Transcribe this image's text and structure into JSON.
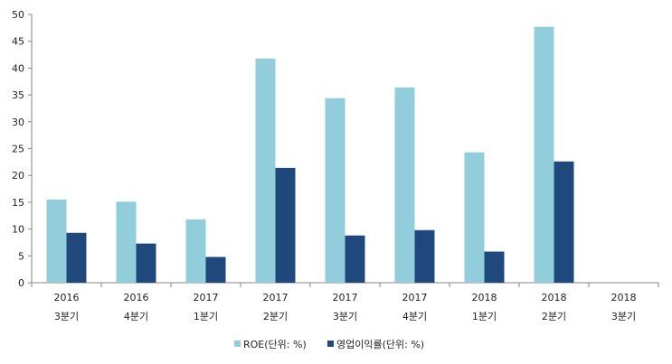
{
  "chart_data": {
    "type": "bar",
    "categories": [
      [
        "2016",
        "3분기"
      ],
      [
        "2016",
        "4분기"
      ],
      [
        "2017",
        "1분기"
      ],
      [
        "2017",
        "2분기"
      ],
      [
        "2017",
        "3분기"
      ],
      [
        "2017",
        "4분기"
      ],
      [
        "2018",
        "1분기"
      ],
      [
        "2018",
        "2분기"
      ],
      [
        "2018",
        "3분기"
      ]
    ],
    "series": [
      {
        "name": "ROE(단위: %)",
        "color": "#92cddc",
        "values": [
          15.5,
          15.1,
          11.8,
          41.8,
          34.4,
          36.4,
          24.3,
          47.7,
          null
        ]
      },
      {
        "name": "영업이익률(단위: %)",
        "color": "#1f497d",
        "values": [
          9.3,
          7.3,
          4.8,
          21.4,
          8.8,
          9.8,
          5.8,
          22.6,
          null
        ]
      }
    ],
    "ylim": [
      0,
      50
    ],
    "yticks": [
      0,
      5,
      10,
      15,
      20,
      25,
      30,
      35,
      40,
      45,
      50
    ],
    "grid": false,
    "legend": "bottom"
  }
}
